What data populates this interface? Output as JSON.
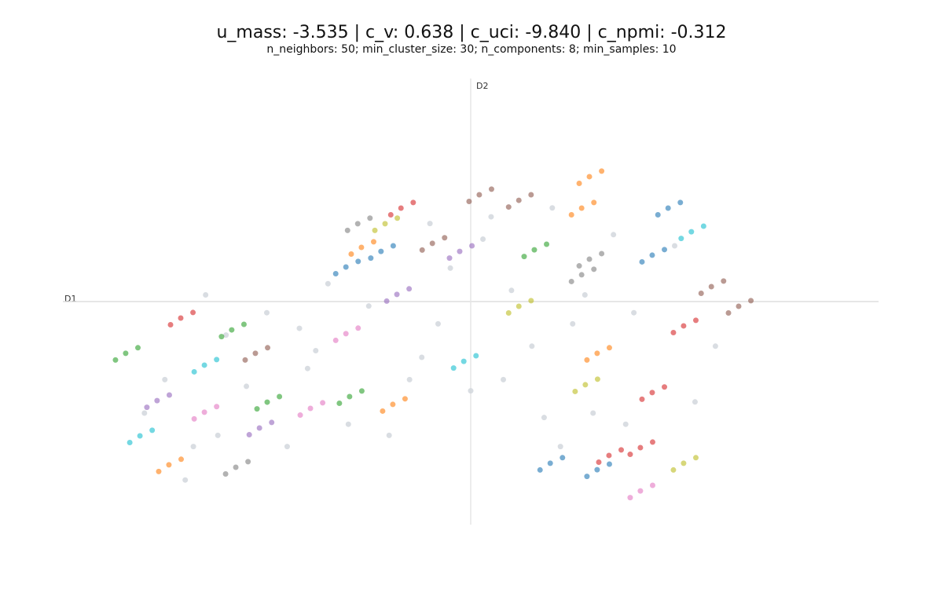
{
  "chart_data": {
    "type": "scatter",
    "title": "u_mass: -3.535 | c_v: 0.638 | c_uci: -9.840 | c_npmi: -0.312",
    "subtitle": "n_neighbors: 50; min_cluster_size: 30; n_components: 8; min_samples: 10",
    "x_label": "D1",
    "y_label": "D2",
    "xlim": [
      -10,
      10
    ],
    "ylim": [
      -10,
      10
    ],
    "series": [
      {
        "color": "#cfd5db",
        "x": [
          -6.5,
          -5,
          -3.5,
          -1,
          0.5,
          2,
          3.5,
          5,
          -7.5,
          -6,
          -4,
          -2.5,
          -0.5,
          1,
          2.5,
          4,
          6,
          -8,
          -6.8,
          -4.5,
          -3,
          -1.5,
          0,
          1.5,
          3,
          5.5,
          -7,
          -5.5,
          -3.8,
          -2,
          -0.8,
          0.8,
          2.2,
          3.8,
          -6.2,
          -4.2,
          0.3,
          1.8,
          -1.2,
          2.8
        ],
        "values": [
          0.3,
          -0.5,
          0.8,
          3.5,
          3.8,
          4.2,
          3,
          2.5,
          -3.5,
          -1.5,
          -3,
          -0.2,
          1.5,
          0.5,
          -1,
          -0.5,
          -2,
          -5,
          -6.5,
          -6.5,
          -5.5,
          -3.5,
          -4,
          -2,
          -5,
          -4.5,
          -8,
          -3.8,
          -2.2,
          -6,
          -1,
          -3.5,
          -6.5,
          -5.5,
          -6,
          -1.2,
          2.8,
          -5.2,
          -2.5,
          0.3
        ]
      },
      {
        "color": "#2ca02c",
        "x": [
          -8.46,
          -8.16,
          -8.71,
          -5.86,
          -5.56,
          -6.11,
          -4.99,
          -4.69,
          -5.24,
          -2.97,
          -2.67,
          -3.22,
          1.56,
          1.86,
          1.31
        ],
        "values": [
          -2.32,
          -2.07,
          -2.62,
          -1.27,
          -1.02,
          -1.57,
          -4.51,
          -4.26,
          -4.81,
          -4.26,
          -4.01,
          -4.56,
          2.32,
          2.57,
          2.02
        ]
      },
      {
        "color": "#ff7f0e",
        "x": [
          -7.4,
          -7.1,
          -7.65,
          2.91,
          3.21,
          2.66,
          2.72,
          3.02,
          2.47,
          -2.68,
          -2.38,
          -2.93,
          3.1,
          3.4,
          2.85,
          -1.91,
          -1.61,
          -2.16
        ],
        "values": [
          -7.32,
          -7.07,
          -7.62,
          5.6,
          5.85,
          5.3,
          4.19,
          4.44,
          3.89,
          2.43,
          2.68,
          2.13,
          -2.32,
          -2.07,
          -2.62,
          -4.61,
          -4.36,
          -4.91
        ]
      },
      {
        "color": "#d62728",
        "x": [
          -7.11,
          -6.81,
          -7.36,
          -1.71,
          -1.41,
          -1.96,
          4.45,
          4.75,
          4.2,
          4.16,
          4.46,
          3.91,
          5.22,
          5.52,
          4.97,
          3.39,
          3.69,
          3.14
        ],
        "values": [
          -0.74,
          -0.49,
          -1.04,
          4.19,
          4.44,
          3.89,
          -4.08,
          -3.83,
          -4.38,
          -6.55,
          -6.3,
          -6.85,
          -1.09,
          -0.84,
          -1.39,
          -6.9,
          -6.65,
          -7.2
        ]
      },
      {
        "color": "#17becf",
        "x": [
          -6.53,
          -6.23,
          -6.78,
          -8.11,
          -7.81,
          -8.36,
          -0.17,
          0.13,
          -0.42,
          5.41,
          5.71,
          5.16
        ],
        "values": [
          -2.85,
          -2.6,
          -3.15,
          -6.02,
          -5.77,
          -6.32,
          -2.68,
          -2.43,
          -2.98,
          3.13,
          3.38,
          2.83
        ]
      },
      {
        "color": "#8c564b",
        "x": [
          -5.28,
          -4.98,
          -5.53,
          0.21,
          0.51,
          -0.04,
          1.18,
          1.48,
          0.93,
          -0.94,
          -0.64,
          -1.19,
          5.9,
          6.2,
          5.65,
          6.57,
          6.87,
          6.32
        ],
        "values": [
          -2.32,
          -2.07,
          -2.62,
          4.79,
          5.04,
          4.49,
          4.54,
          4.79,
          4.24,
          2.61,
          2.86,
          2.31,
          0.67,
          0.92,
          0.37,
          -0.21,
          0.04,
          -0.51
        ]
      },
      {
        "color": "#9467bd",
        "x": [
          -7.69,
          -7.39,
          -7.94,
          -5.18,
          -4.88,
          -5.43,
          -1.81,
          -1.51,
          -2.06,
          -0.27,
          0.03,
          -0.52
        ],
        "values": [
          -4.44,
          -4.19,
          -4.74,
          -5.67,
          -5.42,
          -5.97,
          0.32,
          0.57,
          0.02,
          2.25,
          2.5,
          1.95
        ]
      },
      {
        "color": "#e377c2",
        "x": [
          -6.53,
          -6.23,
          -6.78,
          -3.93,
          -3.63,
          -4.18,
          -3.06,
          -2.76,
          -3.31,
          4.16,
          4.46,
          3.91
        ],
        "values": [
          -4.96,
          -4.71,
          -5.26,
          -4.79,
          -4.54,
          -5.09,
          -1.44,
          -1.19,
          -1.74,
          -8.49,
          -8.24,
          -8.79
        ]
      },
      {
        "color": "#7f7f7f",
        "x": [
          -5.76,
          -5.46,
          -6.01,
          -2.77,
          -2.47,
          -3.02,
          2.91,
          3.21,
          2.66,
          2.72,
          3.02,
          2.47
        ],
        "values": [
          -7.43,
          -7.18,
          -7.73,
          3.49,
          3.74,
          3.19,
          1.9,
          2.15,
          1.6,
          1.2,
          1.45,
          0.9
        ]
      },
      {
        "color": "#bcbd22",
        "x": [
          -2.1,
          -1.8,
          -2.35,
          1.18,
          1.48,
          0.93,
          2.81,
          3.11,
          2.56,
          5.22,
          5.52,
          4.97
        ],
        "values": [
          3.49,
          3.74,
          3.19,
          -0.21,
          0.04,
          -0.51,
          -3.73,
          -3.48,
          -4.03,
          -7.25,
          -7.0,
          -7.55
        ]
      },
      {
        "color": "#1f77b4",
        "x": [
          -3.06,
          -2.76,
          -3.31,
          -2.2,
          -1.9,
          -2.45,
          1.95,
          2.25,
          1.7,
          3.1,
          3.4,
          2.85,
          4.84,
          5.14,
          4.59,
          4.45,
          4.75,
          4.2
        ],
        "values": [
          1.55,
          1.8,
          1.25,
          2.25,
          2.5,
          1.95,
          -7.25,
          -7.0,
          -7.55,
          -7.54,
          -7.29,
          -7.84,
          4.19,
          4.44,
          3.89,
          2.08,
          2.33,
          1.78
        ]
      }
    ]
  }
}
